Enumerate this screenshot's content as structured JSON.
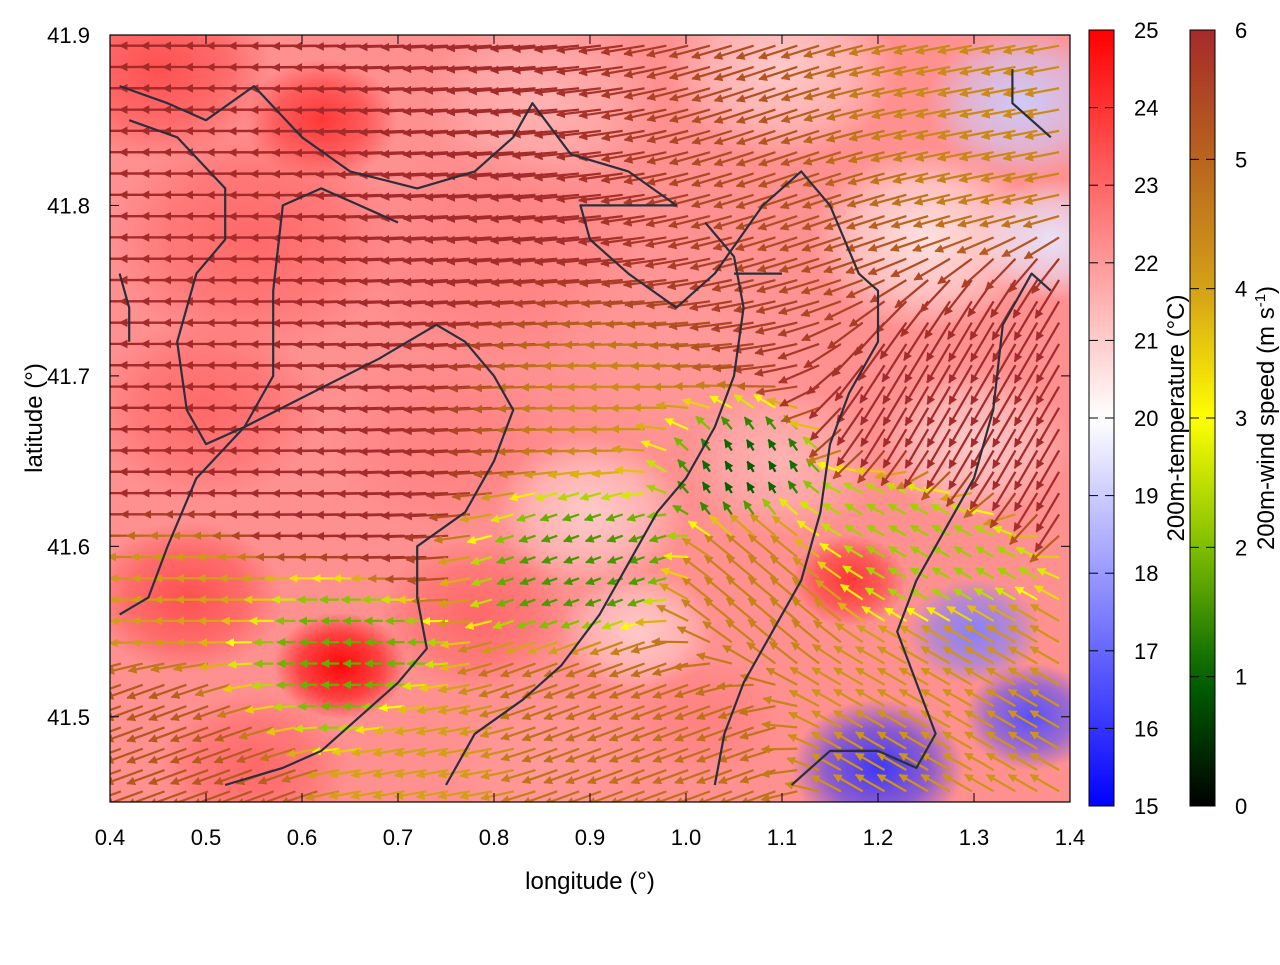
{
  "chart_data": {
    "type": "heatmap",
    "overlay": "wind-vectors",
    "xlabel": "longitude (°)",
    "ylabel": "latitude (°)",
    "xlim": [
      0.4,
      1.4
    ],
    "ylim": [
      41.45,
      41.9
    ],
    "xticks": [
      "0.4",
      "0.5",
      "0.6",
      "0.7",
      "0.8",
      "0.9",
      "1.0",
      "1.1",
      "1.2",
      "1.3",
      "1.4"
    ],
    "yticks": [
      "41.5",
      "41.6",
      "41.7",
      "41.8",
      "41.9"
    ],
    "colorbars": [
      {
        "name": "200m-temperature (°C)",
        "range": [
          15,
          25
        ],
        "ticks": [
          "15",
          "16",
          "17",
          "18",
          "19",
          "20",
          "21",
          "22",
          "23",
          "24",
          "25"
        ],
        "colors": [
          "#0000ff",
          "#ffffff",
          "#ff0000"
        ]
      },
      {
        "name": "200m-wind speed (m s",
        "name_sup": "-1",
        "name_end": ")",
        "range": [
          0,
          6
        ],
        "ticks": [
          "0",
          "1",
          "2",
          "3",
          "4",
          "5",
          "6"
        ],
        "colors": [
          "#000000",
          "#006400",
          "#7fbf00",
          "#ffff00",
          "#d4a017",
          "#b8641e",
          "#a52a2a"
        ]
      }
    ],
    "temperature_hotspots": [
      {
        "lon": 0.45,
        "lat": 41.88,
        "temp": 23.5,
        "r": 0.12
      },
      {
        "lon": 0.62,
        "lat": 41.85,
        "temp": 24.0,
        "r": 0.08
      },
      {
        "lon": 0.85,
        "lat": 41.86,
        "temp": 21.5,
        "r": 0.12
      },
      {
        "lon": 1.1,
        "lat": 41.88,
        "temp": 21.0,
        "r": 0.12
      },
      {
        "lon": 1.35,
        "lat": 41.86,
        "temp": 19.0,
        "r": 0.1
      },
      {
        "lon": 0.55,
        "lat": 41.78,
        "temp": 23.0,
        "r": 0.15
      },
      {
        "lon": 0.8,
        "lat": 41.77,
        "temp": 22.5,
        "r": 0.15
      },
      {
        "lon": 1.0,
        "lat": 41.72,
        "temp": 22.0,
        "r": 0.15
      },
      {
        "lon": 1.25,
        "lat": 41.78,
        "temp": 20.5,
        "r": 0.12
      },
      {
        "lon": 1.38,
        "lat": 41.78,
        "temp": 19.5,
        "r": 0.08
      },
      {
        "lon": 0.5,
        "lat": 41.68,
        "temp": 23.0,
        "r": 0.12
      },
      {
        "lon": 0.75,
        "lat": 41.66,
        "temp": 22.5,
        "r": 0.12
      },
      {
        "lon": 0.9,
        "lat": 41.62,
        "temp": 21.0,
        "r": 0.1
      },
      {
        "lon": 1.1,
        "lat": 41.65,
        "temp": 21.5,
        "r": 0.1
      },
      {
        "lon": 1.3,
        "lat": 41.66,
        "temp": 21.0,
        "r": 0.1
      },
      {
        "lon": 0.48,
        "lat": 41.57,
        "temp": 23.5,
        "r": 0.1
      },
      {
        "lon": 0.64,
        "lat": 41.53,
        "temp": 25.0,
        "r": 0.07
      },
      {
        "lon": 0.78,
        "lat": 41.56,
        "temp": 23.0,
        "r": 0.1
      },
      {
        "lon": 0.95,
        "lat": 41.55,
        "temp": 21.0,
        "r": 0.08
      },
      {
        "lon": 1.02,
        "lat": 41.5,
        "temp": 22.5,
        "r": 0.08
      },
      {
        "lon": 1.17,
        "lat": 41.58,
        "temp": 24.0,
        "r": 0.06
      },
      {
        "lon": 1.3,
        "lat": 41.55,
        "temp": 17.5,
        "r": 0.07
      },
      {
        "lon": 1.2,
        "lat": 41.47,
        "temp": 16.0,
        "r": 0.09
      },
      {
        "lon": 1.36,
        "lat": 41.5,
        "temp": 16.5,
        "r": 0.07
      },
      {
        "lon": 0.55,
        "lat": 41.47,
        "temp": 23.0,
        "r": 0.1
      },
      {
        "lon": 0.85,
        "lat": 41.47,
        "temp": 22.0,
        "r": 0.1
      }
    ],
    "wind_regions": [
      {
        "lon": 0.55,
        "lat": 41.78,
        "speed": 6.0,
        "dir_deg": 180,
        "r": 0.25
      },
      {
        "lon": 0.85,
        "lat": 41.78,
        "speed": 6.0,
        "dir_deg": 185,
        "r": 0.22
      },
      {
        "lon": 1.1,
        "lat": 41.82,
        "speed": 5.3,
        "dir_deg": 200,
        "r": 0.15
      },
      {
        "lon": 1.25,
        "lat": 41.85,
        "speed": 4.3,
        "dir_deg": 190,
        "r": 0.1
      },
      {
        "lon": 1.3,
        "lat": 41.7,
        "speed": 6.0,
        "dir_deg": 240,
        "r": 0.1
      },
      {
        "lon": 0.92,
        "lat": 41.7,
        "speed": 3.8,
        "dir_deg": 180,
        "r": 0.1
      },
      {
        "lon": 0.9,
        "lat": 41.6,
        "speed": 1.5,
        "dir_deg": 200,
        "r": 0.07
      },
      {
        "lon": 1.05,
        "lat": 41.65,
        "speed": 0.8,
        "dir_deg": 120,
        "r": 0.06
      },
      {
        "lon": 0.63,
        "lat": 41.53,
        "speed": 1.8,
        "dir_deg": 180,
        "r": 0.07
      },
      {
        "lon": 0.5,
        "lat": 41.57,
        "speed": 4.0,
        "dir_deg": 180,
        "r": 0.06
      },
      {
        "lon": 1.22,
        "lat": 41.6,
        "speed": 2.2,
        "dir_deg": 150,
        "r": 0.07
      },
      {
        "lon": 1.25,
        "lat": 41.5,
        "speed": 4.2,
        "dir_deg": 150,
        "r": 0.08
      },
      {
        "lon": 0.95,
        "lat": 41.48,
        "speed": 4.8,
        "dir_deg": 200,
        "r": 0.1
      },
      {
        "lon": 0.5,
        "lat": 41.48,
        "speed": 5.2,
        "dir_deg": 200,
        "r": 0.08
      },
      {
        "lon": 0.75,
        "lat": 41.47,
        "speed": 4.0,
        "dir_deg": 190,
        "r": 0.07
      },
      {
        "lon": 1.1,
        "lat": 41.57,
        "speed": 4.5,
        "dir_deg": 140,
        "r": 0.07
      }
    ],
    "contours": [
      [
        [
          0.41,
          41.87
        ],
        [
          0.46,
          41.86
        ],
        [
          0.5,
          41.85
        ],
        [
          0.55,
          41.87
        ],
        [
          0.6,
          41.84
        ],
        [
          0.65,
          41.82
        ],
        [
          0.72,
          41.81
        ],
        [
          0.78,
          41.82
        ],
        [
          0.82,
          41.84
        ],
        [
          0.84,
          41.86
        ],
        [
          0.88,
          41.83
        ],
        [
          0.94,
          41.82
        ],
        [
          0.99,
          41.8
        ],
        [
          0.94,
          41.8
        ],
        [
          0.89,
          41.8
        ],
        [
          0.9,
          41.78
        ],
        [
          0.94,
          41.76
        ],
        [
          0.99,
          41.74
        ],
        [
          1.03,
          41.76
        ],
        [
          1.08,
          41.8
        ],
        [
          1.12,
          41.82
        ],
        [
          1.15,
          41.8
        ],
        [
          1.18,
          41.76
        ],
        [
          1.2,
          41.75
        ],
        [
          1.2,
          41.72
        ],
        [
          1.17,
          41.69
        ],
        [
          1.15,
          41.66
        ],
        [
          1.14,
          41.62
        ],
        [
          1.12,
          41.58
        ],
        [
          1.09,
          41.55
        ],
        [
          1.06,
          41.52
        ],
        [
          1.04,
          41.49
        ],
        [
          1.03,
          41.46
        ]
      ],
      [
        [
          0.42,
          41.85
        ],
        [
          0.47,
          41.84
        ],
        [
          0.52,
          41.81
        ],
        [
          0.52,
          41.78
        ],
        [
          0.49,
          41.76
        ],
        [
          0.47,
          41.72
        ],
        [
          0.48,
          41.68
        ],
        [
          0.5,
          41.66
        ],
        [
          0.54,
          41.67
        ],
        [
          0.57,
          41.7
        ],
        [
          0.57,
          41.75
        ],
        [
          0.58,
          41.8
        ],
        [
          0.62,
          41.81
        ],
        [
          0.66,
          41.8
        ],
        [
          0.7,
          41.79
        ]
      ],
      [
        [
          0.41,
          41.56
        ],
        [
          0.44,
          41.57
        ],
        [
          0.46,
          41.6
        ],
        [
          0.49,
          41.64
        ],
        [
          0.54,
          41.67
        ],
        [
          0.61,
          41.69
        ],
        [
          0.68,
          41.71
        ],
        [
          0.74,
          41.73
        ],
        [
          0.77,
          41.72
        ],
        [
          0.8,
          41.7
        ],
        [
          0.82,
          41.68
        ],
        [
          0.8,
          41.65
        ],
        [
          0.77,
          41.62
        ],
        [
          0.72,
          41.6
        ],
        [
          0.72,
          41.57
        ],
        [
          0.73,
          41.54
        ],
        [
          0.7,
          41.52
        ],
        [
          0.66,
          41.5
        ],
        [
          0.62,
          41.48
        ],
        [
          0.58,
          41.47
        ],
        [
          0.52,
          41.46
        ]
      ],
      [
        [
          0.75,
          41.46
        ],
        [
          0.78,
          41.49
        ],
        [
          0.83,
          41.51
        ],
        [
          0.87,
          41.53
        ],
        [
          0.91,
          41.56
        ],
        [
          0.94,
          41.59
        ],
        [
          0.97,
          41.62
        ],
        [
          1.0,
          41.64
        ],
        [
          1.03,
          41.67
        ],
        [
          1.05,
          41.7
        ],
        [
          1.06,
          41.74
        ],
        [
          1.05,
          41.77
        ],
        [
          1.02,
          41.79
        ]
      ],
      [
        [
          1.11,
          41.46
        ],
        [
          1.15,
          41.48
        ],
        [
          1.2,
          41.48
        ],
        [
          1.24,
          41.47
        ],
        [
          1.26,
          41.49
        ],
        [
          1.24,
          41.52
        ],
        [
          1.22,
          41.55
        ],
        [
          1.24,
          41.58
        ],
        [
          1.27,
          41.61
        ],
        [
          1.3,
          41.64
        ],
        [
          1.32,
          41.68
        ],
        [
          1.33,
          41.73
        ],
        [
          1.36,
          41.76
        ],
        [
          1.38,
          41.75
        ]
      ],
      [
        [
          1.34,
          41.88
        ],
        [
          1.34,
          41.86
        ],
        [
          1.36,
          41.85
        ],
        [
          1.38,
          41.84
        ]
      ],
      [
        [
          0.41,
          41.76
        ],
        [
          0.42,
          41.74
        ],
        [
          0.42,
          41.72
        ]
      ],
      [
        [
          1.05,
          41.76
        ],
        [
          1.08,
          41.76
        ],
        [
          1.1,
          41.76
        ]
      ]
    ]
  }
}
